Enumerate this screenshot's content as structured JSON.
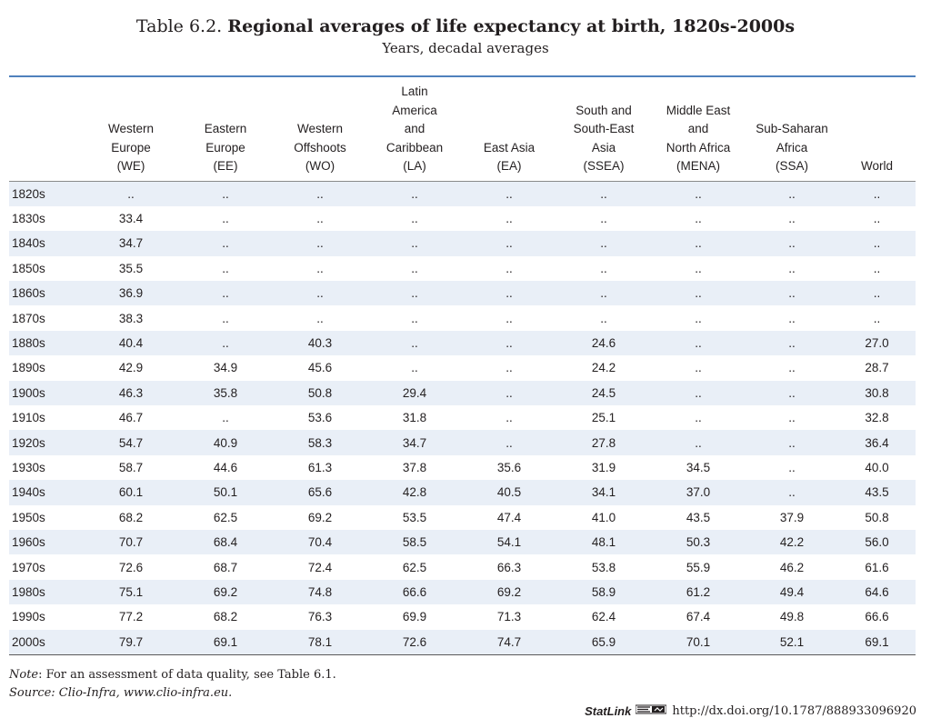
{
  "header": {
    "title_prefix": "Table 6.2.",
    "title_main": "Regional averages of life expectancy at birth, 1820s-2000s",
    "subtitle": "Years, decadal averages"
  },
  "table": {
    "columns": [
      {
        "key": "row",
        "lines": []
      },
      {
        "key": "WE",
        "lines": [
          "Western",
          "Europe",
          "(WE)"
        ]
      },
      {
        "key": "EE",
        "lines": [
          "Eastern",
          "Europe",
          "(EE)"
        ]
      },
      {
        "key": "WO",
        "lines": [
          "Western",
          "Offshoots",
          "(WO)"
        ]
      },
      {
        "key": "LA",
        "lines": [
          "Latin",
          "America",
          "and",
          "Caribbean",
          "(LA)"
        ]
      },
      {
        "key": "EA",
        "lines": [
          "East Asia",
          "(EA)"
        ]
      },
      {
        "key": "SSEA",
        "lines": [
          "South and",
          "South-East",
          "Asia",
          "(SSEA)"
        ]
      },
      {
        "key": "MENA",
        "lines": [
          "Middle East",
          "and",
          "North Africa",
          "(MENA)"
        ]
      },
      {
        "key": "SSA",
        "lines": [
          "Sub-Saharan",
          "Africa",
          "(SSA)"
        ]
      },
      {
        "key": "World",
        "lines": [
          "World"
        ]
      }
    ],
    "rows": [
      [
        "1820s",
        "..",
        "..",
        "..",
        "..",
        "..",
        "..",
        "..",
        "..",
        ".."
      ],
      [
        "1830s",
        "33.4",
        "..",
        "..",
        "..",
        "..",
        "..",
        "..",
        "..",
        ".."
      ],
      [
        "1840s",
        "34.7",
        "..",
        "..",
        "..",
        "..",
        "..",
        "..",
        "..",
        ".."
      ],
      [
        "1850s",
        "35.5",
        "..",
        "..",
        "..",
        "..",
        "..",
        "..",
        "..",
        ".."
      ],
      [
        "1860s",
        "36.9",
        "..",
        "..",
        "..",
        "..",
        "..",
        "..",
        "..",
        ".."
      ],
      [
        "1870s",
        "38.3",
        "..",
        "..",
        "..",
        "..",
        "..",
        "..",
        "..",
        ".."
      ],
      [
        "1880s",
        "40.4",
        "..",
        "40.3",
        "..",
        "..",
        "24.6",
        "..",
        "..",
        "27.0"
      ],
      [
        "1890s",
        "42.9",
        "34.9",
        "45.6",
        "..",
        "..",
        "24.2",
        "..",
        "..",
        "28.7"
      ],
      [
        "1900s",
        "46.3",
        "35.8",
        "50.8",
        "29.4",
        "..",
        "24.5",
        "..",
        "..",
        "30.8"
      ],
      [
        "1910s",
        "46.7",
        "..",
        "53.6",
        "31.8",
        "..",
        "25.1",
        "..",
        "..",
        "32.8"
      ],
      [
        "1920s",
        "54.7",
        "40.9",
        "58.3",
        "34.7",
        "..",
        "27.8",
        "..",
        "..",
        "36.4"
      ],
      [
        "1930s",
        "58.7",
        "44.6",
        "61.3",
        "37.8",
        "35.6",
        "31.9",
        "34.5",
        "..",
        "40.0"
      ],
      [
        "1940s",
        "60.1",
        "50.1",
        "65.6",
        "42.8",
        "40.5",
        "34.1",
        "37.0",
        "..",
        "43.5"
      ],
      [
        "1950s",
        "68.2",
        "62.5",
        "69.2",
        "53.5",
        "47.4",
        "41.0",
        "43.5",
        "37.9",
        "50.8"
      ],
      [
        "1960s",
        "70.7",
        "68.4",
        "70.4",
        "58.5",
        "54.1",
        "48.1",
        "50.3",
        "42.2",
        "56.0"
      ],
      [
        "1970s",
        "72.6",
        "68.7",
        "72.4",
        "62.5",
        "66.3",
        "53.8",
        "55.9",
        "46.2",
        "61.6"
      ],
      [
        "1980s",
        "75.1",
        "69.2",
        "74.8",
        "66.6",
        "69.2",
        "58.9",
        "61.2",
        "49.4",
        "64.6"
      ],
      [
        "1990s",
        "77.2",
        "68.2",
        "76.3",
        "69.9",
        "71.3",
        "62.4",
        "67.4",
        "49.8",
        "66.6"
      ],
      [
        "2000s",
        "79.7",
        "69.1",
        "78.1",
        "72.6",
        "74.7",
        "65.9",
        "70.1",
        "52.1",
        "69.1"
      ]
    ]
  },
  "notes": {
    "note_label": "Note",
    "note_text": ": For an assessment of data quality, see Table 6.1.",
    "source_label": "Source",
    "source_text": ": Clio-Infra, www.clio-infra.eu."
  },
  "statlink": {
    "brand": "StatLink",
    "logo_icon": "statlink-logo-icon",
    "url": "http://dx.doi.org/10.1787/888933096920"
  },
  "colors": {
    "header_rule": "#4f81bd",
    "row_band": "#e9eff7",
    "text": "#231f20"
  }
}
